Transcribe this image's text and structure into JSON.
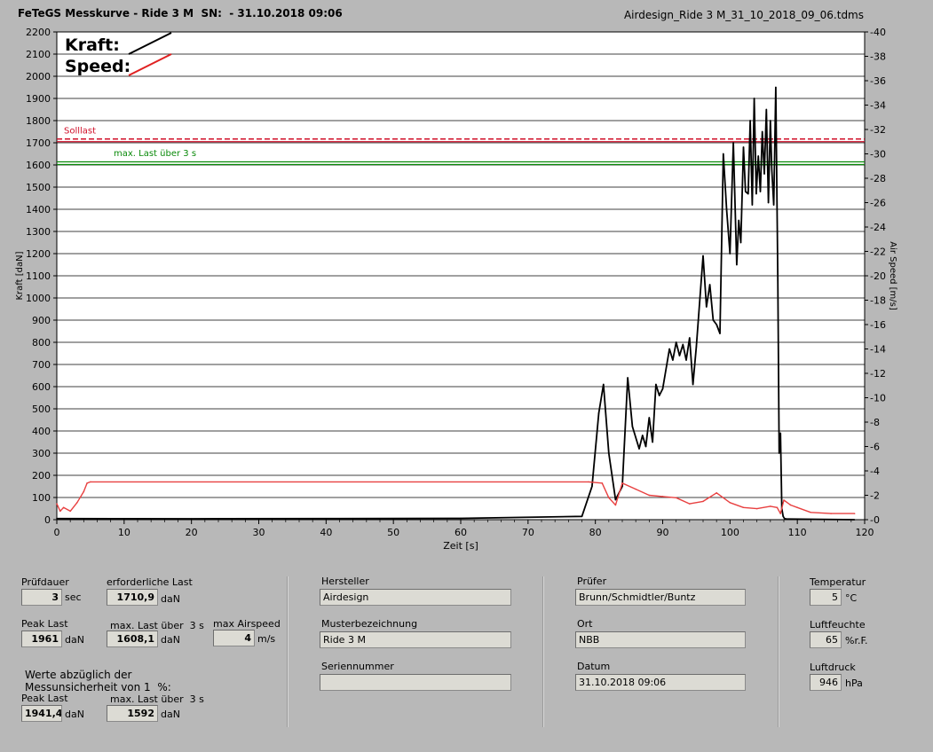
{
  "header": {
    "title": "FeTeGS Messkurve - Ride 3 M  SN:  - 31.10.2018 09:06",
    "filename": "Airdesign_Ride 3 M_31_10_2018_09_06.tdms"
  },
  "chart_data": {
    "type": "line",
    "xlabel": "Zeit [s]",
    "ylabel": "Kraft [daN]",
    "y2label": "Air Speed [m/s]",
    "xlim": [
      0,
      120
    ],
    "ylim": [
      0,
      2200
    ],
    "y2lim": [
      0,
      40
    ],
    "x_ticks": [
      "0",
      "10",
      "20",
      "30",
      "40",
      "50",
      "60",
      "70",
      "80",
      "90",
      "100",
      "110",
      "120"
    ],
    "y_ticks": [
      "0",
      "100",
      "200",
      "300",
      "400",
      "500",
      "600",
      "700",
      "800",
      "900",
      "1000",
      "1100",
      "1200",
      "1300",
      "1400",
      "1500",
      "1600",
      "1700",
      "1800",
      "1900",
      "2000",
      "2100",
      "2200"
    ],
    "y2_ticks": [
      "0",
      "2",
      "4",
      "6",
      "8",
      "10",
      "12",
      "14",
      "16",
      "18",
      "20",
      "22",
      "24",
      "26",
      "28",
      "30",
      "32",
      "34",
      "36",
      "38",
      "40"
    ],
    "grid": "horizontal",
    "legend": [
      {
        "label": "Kraft:",
        "color": "#000000"
      },
      {
        "label": "Speed:",
        "color": "#e02020"
      }
    ],
    "reference_lines": [
      {
        "label": "Solllast",
        "y": 1710.9,
        "color": "#d0102a",
        "style": "dashed"
      },
      {
        "label": "max. Last über  3 s",
        "y": 1608.1,
        "color": "#0a8a0a",
        "style": "solid"
      }
    ],
    "series": [
      {
        "name": "Kraft",
        "axis": "left",
        "color": "#000000",
        "x": [
          0,
          20,
          40,
          60,
          78,
          79.5,
          80.5,
          81.2,
          82,
          83,
          84,
          84.8,
          85.5,
          86.5,
          87,
          87.5,
          88,
          88.5,
          89,
          89.5,
          90,
          91,
          91.5,
          92,
          92.5,
          93,
          93.5,
          94,
          94.5,
          95,
          96,
          96.5,
          97,
          97.5,
          98,
          98.5,
          99,
          99.5,
          100,
          100.5,
          101,
          101.3,
          101.6,
          102,
          102.3,
          102.7,
          103,
          103.3,
          103.6,
          103.9,
          104.2,
          104.5,
          104.8,
          105.1,
          105.4,
          105.7,
          106,
          106.2,
          106.5,
          106.8,
          107.1,
          107.3,
          107.5,
          107.7,
          107.9,
          108.1,
          108.4,
          118.5
        ],
        "y": [
          5,
          4,
          5,
          6,
          15,
          150,
          480,
          610,
          300,
          90,
          150,
          640,
          420,
          320,
          380,
          330,
          460,
          350,
          610,
          560,
          590,
          770,
          720,
          800,
          740,
          790,
          720,
          820,
          610,
          780,
          1190,
          960,
          1060,
          900,
          880,
          840,
          1650,
          1400,
          1200,
          1700,
          1150,
          1350,
          1250,
          1680,
          1480,
          1470,
          1800,
          1420,
          1900,
          1470,
          1640,
          1480,
          1750,
          1560,
          1850,
          1430,
          1800,
          1580,
          1420,
          1950,
          1080,
          300,
          390,
          50,
          15,
          5,
          3,
          0
        ]
      },
      {
        "name": "Speed",
        "axis": "right",
        "color": "#e84040",
        "x": [
          0,
          0.5,
          1,
          2,
          3,
          4,
          4.5,
          5,
          79,
          81,
          82,
          83,
          84,
          86,
          88,
          90,
          92,
          94,
          96,
          98,
          100,
          102,
          104,
          106,
          107,
          107.5,
          108,
          109,
          110,
          112,
          115,
          118.5
        ],
        "y": [
          1.3,
          0.7,
          1.0,
          0.7,
          1.4,
          2.3,
          3.0,
          3.1,
          3.1,
          3.0,
          1.8,
          1.2,
          3.0,
          2.5,
          2.0,
          1.9,
          1.8,
          1.3,
          1.5,
          2.2,
          1.4,
          1.0,
          0.9,
          1.1,
          1.0,
          0.5,
          1.6,
          1.2,
          1.0,
          0.6,
          0.5,
          0.5
        ]
      }
    ]
  },
  "panel": {
    "pruefdauer": {
      "label": "Prüfdauer",
      "value": "3",
      "unit": "sec"
    },
    "erforderliche_last": {
      "label": "erforderliche Last",
      "value": "1710,9",
      "unit": "daN"
    },
    "peak_last": {
      "label": "Peak Last",
      "value": "1961",
      "unit": "daN"
    },
    "max_last": {
      "label": "max. Last über  3 s",
      "value": "1608,1",
      "unit": "daN"
    },
    "max_airspeed": {
      "label": "max Airspeed",
      "value": "4",
      "unit": "m/s"
    },
    "werte_note_1": "Werte abzüglich der",
    "werte_note_2": "Messunsicherheit von 1  %:",
    "peak_last_corr": {
      "label": "Peak Last",
      "value": "1941,4",
      "unit": "daN"
    },
    "max_last_corr": {
      "label": "max. Last über  3 s",
      "value": "1592",
      "unit": "daN"
    },
    "hersteller": {
      "label": "Hersteller",
      "value": "Airdesign"
    },
    "musterbezeichnung": {
      "label": "Musterbezeichnung",
      "value": "Ride 3 M"
    },
    "seriennummer": {
      "label": "Seriennummer",
      "value": ""
    },
    "pruefer": {
      "label": "Prüfer",
      "value": "Brunn/Schmidtler/Buntz"
    },
    "ort": {
      "label": "Ort",
      "value": "NBB"
    },
    "datum": {
      "label": "Datum",
      "value": "31.10.2018 09:06"
    },
    "temperatur": {
      "label": "Temperatur",
      "value": "5",
      "unit": "°C"
    },
    "luftfeuchte": {
      "label": "Luftfeuchte",
      "value": "65",
      "unit": "%r.F."
    },
    "luftdruck": {
      "label": "Luftdruck",
      "value": "946",
      "unit": "hPa"
    }
  }
}
